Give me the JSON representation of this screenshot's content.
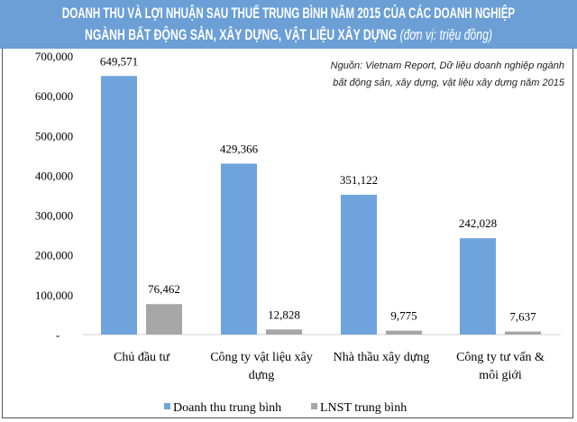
{
  "header": {
    "title_line1": "DOANH THU VÀ LỢI NHUẬN SAU THUẾ TRUNG BÌNH NĂM 2015 CỦA CÁC DOANH NGHIỆP",
    "title_line2": "NGÀNH BẤT ĐỘNG SẢN, XÂY DỰNG, VẬT LIỆU XÂY DỰNG",
    "unit": "(đơn vị: triệu đồng)"
  },
  "source": {
    "line1": "Nguồn: Vietnam Report, Dữ liệu doanh nghiệp ngành",
    "line2": "bất động sản, xây dựng, vật liệu xây dựng năm 2015"
  },
  "chart_data": {
    "type": "bar",
    "categories": [
      [
        "Chủ đầu tư"
      ],
      [
        "Công ty vật liệu xây",
        "dựng"
      ],
      [
        "Nhà thầu xây dựng"
      ],
      [
        "Công ty tư vấn &",
        "môi giới"
      ]
    ],
    "series": [
      {
        "name": "Doanh thu trung bình",
        "color": "#6fa3dc",
        "values": [
          649571,
          429366,
          351122,
          242028
        ],
        "labels": [
          "649,571",
          "429,366",
          "351,122",
          "242,028"
        ]
      },
      {
        "name": "LNST trung bình",
        "color": "#a6a6a6",
        "values": [
          76462,
          12828,
          9775,
          7637
        ],
        "labels": [
          "76,462",
          "12,828",
          "9,775",
          "7,637"
        ]
      }
    ],
    "ylim": [
      0,
      700000
    ],
    "yticks": [
      "-",
      "100,000",
      "200,000",
      "300,000",
      "400,000",
      "500,000",
      "600,000",
      "700,000"
    ],
    "grid": false,
    "legend": "bottom",
    "band_color": "#6b9fd6"
  }
}
